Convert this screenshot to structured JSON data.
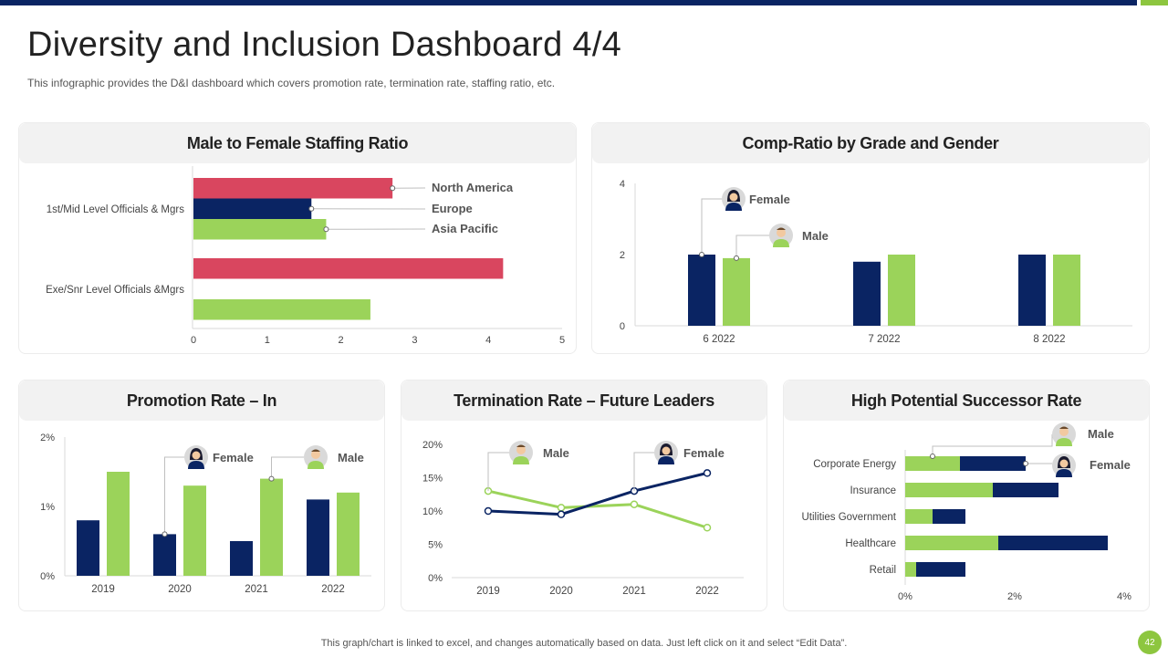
{
  "page": {
    "title": "Diversity and Inclusion Dashboard 4/4",
    "subtitle": "This infographic provides the D&I dashboard which covers promotion rate, termination rate, staffing ratio, etc.",
    "footer": "This graph/chart is linked to excel, and changes automatically based on data. Just left click on it and select “Edit Data”.",
    "page_number": "42"
  },
  "colors": {
    "navy": "#0a2463",
    "green": "#9bd35a",
    "red": "#d9465f",
    "accent": "#8dc63f"
  },
  "chart_data": [
    {
      "id": "staffing",
      "type": "bar",
      "orientation": "horizontal",
      "title": "Male to Female Staffing Ratio",
      "categories": [
        "1st/Mid Level Officials & Mgrs",
        "Exe/Snr Level Officials &Mgrs"
      ],
      "series": [
        {
          "name": "North America",
          "color": "#d9465f",
          "values": [
            2.7,
            4.2
          ]
        },
        {
          "name": "Europe",
          "color": "#0a2463",
          "values": [
            1.6,
            0
          ]
        },
        {
          "name": "Asia Pacific",
          "color": "#9bd35a",
          "values": [
            1.8,
            2.4
          ]
        }
      ],
      "xlim": [
        0,
        5
      ],
      "xticks": [
        "0",
        "1",
        "2",
        "3",
        "4",
        "5"
      ],
      "annotations": [
        "North America",
        "Europe",
        "Asia Pacific"
      ]
    },
    {
      "id": "compratio",
      "type": "bar",
      "title": "Comp-Ratio by Grade and Gender",
      "categories": [
        "6 2022",
        "7 2022",
        "8 2022"
      ],
      "series": [
        {
          "name": "Female",
          "color": "#0a2463",
          "values": [
            2.0,
            1.8,
            2.0
          ]
        },
        {
          "name": "Male",
          "color": "#9bd35a",
          "values": [
            1.9,
            2.0,
            2.0
          ]
        }
      ],
      "ylim": [
        0,
        4
      ],
      "yticks": [
        "0",
        "2",
        "4"
      ],
      "annotations": [
        "Female",
        "Male"
      ]
    },
    {
      "id": "promotion",
      "type": "bar",
      "title": "Promotion Rate – In",
      "categories": [
        "2019",
        "2020",
        "2021",
        "2022"
      ],
      "series": [
        {
          "name": "Female",
          "color": "#0a2463",
          "values": [
            0.8,
            0.6,
            0.5,
            1.1
          ]
        },
        {
          "name": "Male",
          "color": "#9bd35a",
          "values": [
            1.5,
            1.3,
            1.4,
            1.2
          ]
        }
      ],
      "ylim": [
        0,
        2
      ],
      "yticks": [
        "0%",
        "1%",
        "2%"
      ],
      "annotations": [
        "Female",
        "Male"
      ]
    },
    {
      "id": "termination",
      "type": "line",
      "title": "Termination Rate – Future Leaders",
      "categories": [
        "2019",
        "2020",
        "2021",
        "2022"
      ],
      "series": [
        {
          "name": "Female",
          "color": "#0a2463",
          "values": [
            10,
            9.5,
            13,
            15.7
          ]
        },
        {
          "name": "Male",
          "color": "#9bd35a",
          "values": [
            13,
            10.5,
            11,
            7.5
          ]
        }
      ],
      "ylim": [
        0,
        20
      ],
      "yticks": [
        "0%",
        "5%",
        "10%",
        "15%",
        "20%"
      ],
      "annotations": [
        "Male",
        "Female"
      ]
    },
    {
      "id": "successor",
      "type": "bar",
      "orientation": "horizontal",
      "stacked": true,
      "title": "High Potential Successor Rate",
      "categories": [
        "Corporate Energy",
        "Insurance",
        "Utilities Government",
        "Healthcare",
        "Retail"
      ],
      "series": [
        {
          "name": "Male",
          "color": "#9bd35a",
          "values": [
            1.0,
            1.6,
            0.5,
            1.7,
            0.2
          ]
        },
        {
          "name": "Female",
          "color": "#0a2463",
          "values": [
            1.2,
            1.2,
            0.6,
            2.0,
            0.9
          ]
        }
      ],
      "xlim": [
        0,
        4
      ],
      "xticks": [
        "0%",
        "2%",
        "4%"
      ],
      "annotations": [
        "Male",
        "Female"
      ]
    }
  ]
}
